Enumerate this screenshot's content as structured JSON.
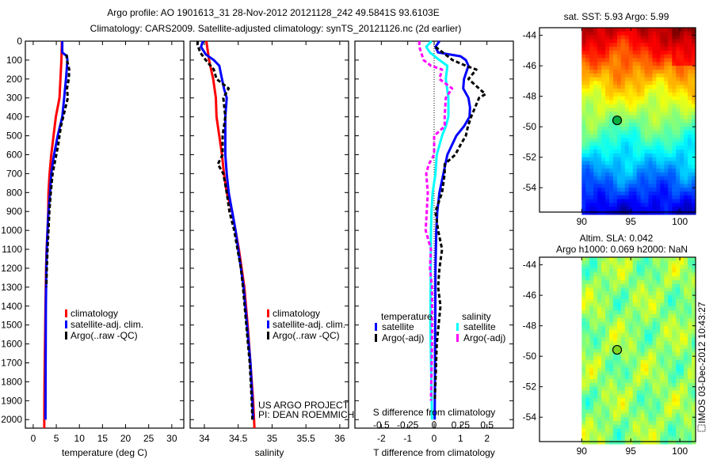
{
  "title_line1": "Argo profile: AO 1901613_31 28-Nov-2012 20121128_242 49.5841S 93.6103E",
  "title_line2": "Climatology: CARS2009. Satellite-adjusted climatology: synTS_20121126.nc (2d earlier)",
  "timestamp": "IMOS 03-Dec-2012 10:43:27",
  "chart_data": [
    {
      "id": "temperature",
      "type": "line",
      "xlabel": "temperature (deg C)",
      "ylabel": "depth",
      "xlim": [
        -1.7,
        32.6
      ],
      "ylim": [
        0,
        2045
      ],
      "xticks": [
        "0",
        "5",
        "10",
        "15",
        "20",
        "25",
        "30"
      ],
      "yticks": [
        "0",
        "100",
        "200",
        "300",
        "400",
        "500",
        "600",
        "700",
        "800",
        "900",
        "1000",
        "1100",
        "1200",
        "1300",
        "1400",
        "1500",
        "1600",
        "1700",
        "1800",
        "1900",
        "2000"
      ],
      "legend": [
        "climatology",
        "satellite-adj. clim.",
        "Argo(..raw -QC)"
      ],
      "series": [
        {
          "name": "climatology",
          "color": "#ff0000",
          "style": "solid",
          "depth": [
            0,
            100,
            200,
            300,
            400,
            500,
            600,
            700,
            800,
            900,
            1000,
            1100,
            1200,
            1400,
            1600,
            1800,
            2000,
            2045
          ],
          "values": [
            6.2,
            6.1,
            5.9,
            5.7,
            4.9,
            4.4,
            3.9,
            3.55,
            3.3,
            3.25,
            3.1,
            2.9,
            2.8,
            2.65,
            2.55,
            2.45,
            2.4,
            2.4
          ]
        },
        {
          "name": "satellite-adj. clim.",
          "color": "#0000ff",
          "style": "solid",
          "depth": [
            0,
            60,
            80,
            100,
            200,
            300,
            400,
            500,
            600,
            700,
            800,
            900,
            1000,
            1100,
            1200,
            1400,
            1600,
            1800,
            2000
          ],
          "values": [
            6.3,
            6.3,
            7.3,
            7.4,
            7.1,
            6.7,
            6.3,
            5.3,
            4.5,
            3.9,
            3.65,
            3.3,
            3.1,
            2.95,
            2.85,
            2.75,
            2.7,
            2.68,
            2.65
          ]
        },
        {
          "name": "Argo(..raw -QC)",
          "color": "#000000",
          "style": "dashed",
          "depth": [
            70,
            100,
            150,
            200,
            250,
            300,
            350,
            400,
            450,
            500,
            550,
            600,
            650,
            700,
            800,
            900,
            1000,
            1100,
            1200,
            1300
          ],
          "values": [
            7.2,
            7.3,
            7.8,
            7.7,
            7.3,
            7.5,
            7.0,
            6.5,
            6.0,
            5.7,
            5.4,
            5.0,
            4.6,
            4.2,
            3.8,
            3.5,
            3.3,
            3.1,
            2.95,
            2.85
          ]
        }
      ]
    },
    {
      "id": "salinity",
      "type": "line",
      "xlabel": "salinity",
      "xlim": [
        33.79,
        36.13
      ],
      "ylim": [
        0,
        2045
      ],
      "xticks": [
        "34",
        "34.5",
        "35",
        "35.5",
        "36"
      ],
      "legend": [
        "climatology",
        "satellite-adj. clim.",
        "Argo(..raw -QC)"
      ],
      "annotations": [
        "US ARGO PROJECT",
        "PI: DEAN ROEMMICH"
      ],
      "series": [
        {
          "name": "climatology",
          "color": "#ff0000",
          "style": "solid",
          "depth": [
            0,
            100,
            200,
            300,
            400,
            500,
            600,
            700,
            800,
            900,
            1000,
            1100,
            1200,
            1300,
            1500,
            1700,
            1900,
            2045
          ],
          "values": [
            34.03,
            34.07,
            34.13,
            34.17,
            34.18,
            34.22,
            34.26,
            34.29,
            34.33,
            34.41,
            34.46,
            34.51,
            34.55,
            34.59,
            34.64,
            34.68,
            34.72,
            34.74
          ]
        },
        {
          "name": "satellite-adj. clim.",
          "color": "#0000ff",
          "style": "solid",
          "depth": [
            0,
            30,
            70,
            100,
            130,
            200,
            250,
            300,
            400,
            500,
            600,
            700,
            800,
            900,
            1000,
            1100,
            1200,
            1300,
            1500,
            1700,
            1900,
            2000
          ],
          "values": [
            33.98,
            33.95,
            34.02,
            34.14,
            34.22,
            34.26,
            34.29,
            34.33,
            34.31,
            34.31,
            34.31,
            34.33,
            34.36,
            34.41,
            34.46,
            34.5,
            34.54,
            34.58,
            34.63,
            34.68,
            34.71,
            34.72
          ]
        },
        {
          "name": "Argo(..raw -QC)",
          "color": "#000000",
          "style": "dashed",
          "depth": [
            0,
            20,
            60,
            100,
            150,
            200,
            250,
            300,
            400,
            500,
            600,
            650,
            700,
            800,
            900,
            1000,
            1100,
            1200,
            1300,
            1500,
            1700,
            1900,
            2000
          ],
          "values": [
            33.9,
            33.9,
            33.94,
            34.02,
            34.14,
            34.18,
            34.36,
            34.28,
            34.31,
            34.27,
            34.27,
            34.2,
            34.28,
            34.33,
            34.37,
            34.44,
            34.49,
            34.54,
            34.57,
            34.62,
            34.67,
            34.7,
            34.71
          ]
        }
      ]
    },
    {
      "id": "difference",
      "type": "line",
      "xlabel": "T difference from climatology",
      "xlabel_s": "S difference from climatology",
      "xlim": [
        -3,
        3
      ],
      "xlim_s": [
        -0.75,
        0.75
      ],
      "ylim": [
        0,
        2045
      ],
      "xticks": [
        "-2",
        "-1",
        "0",
        "1",
        "2"
      ],
      "xticks_s": [
        "-0.5",
        "-0.25",
        "0",
        "0.25",
        "0.5"
      ],
      "legend_headings": [
        "temperature",
        "salinity"
      ],
      "legend": [
        "satellite",
        "Argo(-adj)",
        "satellite",
        "Argo(-adj)"
      ],
      "series": [
        {
          "name": "temperature satellite",
          "axis": "T",
          "color": "#0000ff",
          "style": "solid",
          "depth": [
            0,
            30,
            60,
            80,
            100,
            130,
            200,
            250,
            300,
            350,
            400,
            450,
            500,
            600,
            700,
            800,
            900,
            1000,
            1200,
            1600,
            2000
          ],
          "values": [
            0.2,
            0.05,
            0.15,
            1.0,
            1.2,
            1.3,
            1.13,
            1.1,
            1.3,
            1.36,
            1.34,
            1.13,
            0.84,
            0.5,
            0.35,
            0.2,
            0.12,
            0.08,
            0.05,
            0.04,
            0.02
          ]
        },
        {
          "name": "temperature Argo(-adj)",
          "axis": "T",
          "color": "#000000",
          "style": "dashed",
          "depth": [
            30,
            100,
            130,
            150,
            200,
            250,
            280,
            300,
            350,
            400,
            450,
            500,
            550,
            600,
            650,
            700,
            800,
            900,
            1000,
            1100,
            1200,
            1300,
            1400,
            1600,
            1800,
            1900
          ],
          "values": [
            0.05,
            0.7,
            1.2,
            1.6,
            1.3,
            1.7,
            1.94,
            1.7,
            1.55,
            1.4,
            1.28,
            1.2,
            0.99,
            0.8,
            0.4,
            0.4,
            0.3,
            0.05,
            0.15,
            0.3,
            0.2,
            0.15,
            0.24,
            0.1,
            0.05,
            0.02
          ]
        },
        {
          "name": "salinity satellite",
          "axis": "S",
          "color": "#00ffff",
          "style": "solid",
          "depth": [
            0,
            30,
            60,
            100,
            130,
            200,
            300,
            400,
            450,
            500,
            600,
            700,
            800,
            900,
            1000,
            1500,
            2000
          ],
          "values": [
            -0.025,
            -0.075,
            -0.04,
            0.05,
            0.125,
            0.11,
            0.135,
            0.135,
            0.11,
            0.075,
            0.025,
            0.013,
            -0.014,
            -0.025,
            -0.03,
            -0.035,
            -0.02
          ]
        },
        {
          "name": "salinity Argo(-adj)",
          "axis": "S",
          "color": "#ff00ff",
          "style": "dashed",
          "depth": [
            0,
            30,
            100,
            130,
            150,
            200,
            250,
            300,
            400,
            450,
            500,
            600,
            650,
            700,
            800,
            900,
            1000,
            1100,
            1200,
            1300,
            1600,
            1900
          ],
          "values": [
            -0.14,
            -0.14,
            -0.1,
            -0.03,
            0.075,
            0.05,
            0.17,
            0.11,
            0.1,
            0.1,
            0,
            0,
            -0.05,
            -0.075,
            -0.06,
            -0.07,
            -0.08,
            -0.03,
            -0.04,
            -0.02,
            -0.02,
            -0.03
          ]
        }
      ]
    },
    {
      "id": "sst_map",
      "type": "heatmap",
      "title": "sat. SST: 5.93 Argo: 5.99",
      "colormap": "jet",
      "xlim": [
        85.7,
        101.6
      ],
      "ylim": [
        -55.6,
        -43.5
      ],
      "data_lon_min": 90,
      "xticks": [
        "90",
        "95",
        "100"
      ],
      "yticks": [
        "-44",
        "-46",
        "-48",
        "-50",
        "-52",
        "-54"
      ],
      "float_location": {
        "lon": 93.61,
        "lat": -49.58,
        "fill": "#00b040"
      }
    },
    {
      "id": "sla_map",
      "type": "heatmap",
      "title": "Altim. SLA: 0.042",
      "subtitle": "Argo h1000: 0.069 h2000: NaN",
      "colormap": "jet",
      "xlim": [
        85.7,
        101.6
      ],
      "ylim": [
        -55.6,
        -43.5
      ],
      "data_lon_min": 90,
      "xticks": [
        "90",
        "95",
        "100"
      ],
      "yticks": [
        "-44",
        "-46",
        "-48",
        "-50",
        "-52",
        "-54"
      ],
      "float_location": {
        "lon": 93.61,
        "lat": -49.58,
        "fill": "#80d820"
      }
    }
  ]
}
